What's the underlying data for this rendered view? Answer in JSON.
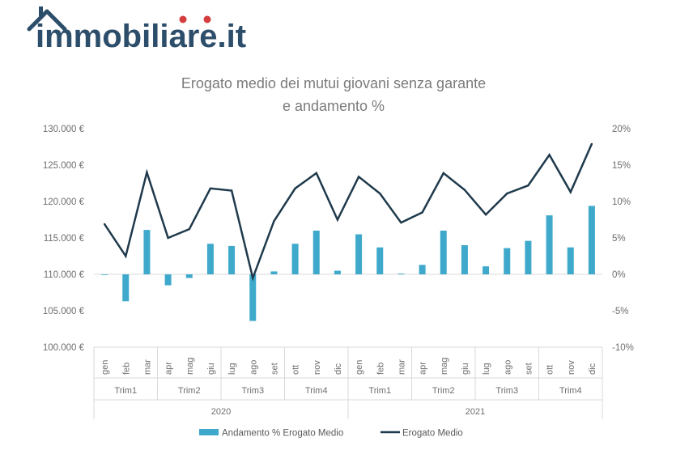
{
  "brand": {
    "logo_text": "immobiliare.it",
    "colors": {
      "navy": "#2d4e6b",
      "red": "#d33d3d"
    }
  },
  "chart_data": {
    "type": "bar",
    "title_line1": "Erogato medio dei mutui giovani senza garante",
    "title_line2": "e andamento %",
    "categories": [
      "gen",
      "feb",
      "mar",
      "apr",
      "mag",
      "giu",
      "lug",
      "ago",
      "set",
      "ott",
      "nov",
      "dic",
      "gen",
      "feb",
      "mar",
      "apr",
      "mag",
      "giu",
      "lug",
      "ago",
      "set",
      "ott",
      "nov",
      "dic"
    ],
    "quarters": [
      "Trim1",
      "Trim2",
      "Trim3",
      "Trim4",
      "Trim1",
      "Trim2",
      "Trim3",
      "Trim4"
    ],
    "years": [
      "2020",
      "2021"
    ],
    "series": [
      {
        "name": "Andamento % Erogato Medio",
        "type": "bar",
        "axis": "right",
        "color": "#3fa9cc",
        "values": [
          0,
          -3.7,
          6.1,
          -1.5,
          -0.5,
          4.2,
          3.9,
          -6.4,
          0.4,
          4.2,
          6.0,
          0.5,
          5.5,
          3.7,
          0.1,
          1.3,
          6.0,
          4.0,
          1.1,
          3.6,
          4.6,
          8.1,
          3.7,
          9.4
        ]
      },
      {
        "name": "Erogato Medio",
        "type": "line",
        "axis": "left",
        "color": "#1f3a4c",
        "values": [
          116900,
          112500,
          124000,
          115000,
          116200,
          121800,
          121500,
          109500,
          117300,
          121800,
          123900,
          117500,
          123400,
          121100,
          117100,
          118500,
          123900,
          121600,
          118200,
          121100,
          122200,
          126400,
          121300,
          127900
        ]
      }
    ],
    "yleft": {
      "min": 100000,
      "max": 130000,
      "step": 5000,
      "tick_labels": [
        "100.000 €",
        "105.000 €",
        "110.000 €",
        "115.000 €",
        "120.000 €",
        "125.000 €",
        "130.000 €"
      ]
    },
    "yright": {
      "min": -10,
      "max": 20,
      "step": 5,
      "tick_labels": [
        "-10%",
        "-5%",
        "0%",
        "5%",
        "10%",
        "15%",
        "20%"
      ]
    },
    "legend_position": "bottom",
    "grid": false
  }
}
